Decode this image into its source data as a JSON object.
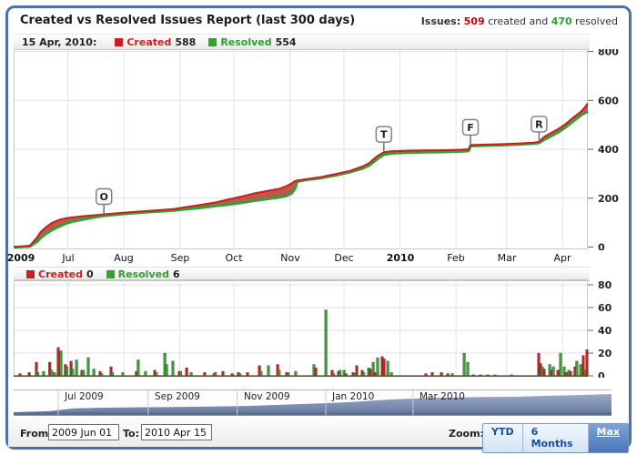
{
  "header": {
    "title": "Created vs Resolved Issues Report (last 300 days)",
    "issues_label": "Issues:",
    "created_count": "509",
    "created_join": " created and ",
    "resolved_count": "470",
    "resolved_tail": " resolved"
  },
  "colors": {
    "created_line": "#c9201d",
    "created_fill": "#ba4f45",
    "resolved_line": "#36a035",
    "grid": "#e2e2e2",
    "axis_text": "#222222",
    "nav_fill_top": "#9aa9c6",
    "nav_fill_bottom": "#66779f",
    "nav_bottom_band": "#5c6d94",
    "accent_blue": "#4a72a8"
  },
  "chart_data": [
    {
      "type": "area",
      "title": "Created vs Resolved cumulative",
      "legend": {
        "date": "15 Apr, 2010:",
        "created_label": "Created",
        "created_value": "588",
        "resolved_label": "Resolved",
        "resolved_value": "554"
      },
      "legend_position": "top",
      "x_range_days": 318,
      "ylim": [
        0,
        800
      ],
      "y_ticks": [
        0,
        200,
        400,
        600,
        800
      ],
      "y_axis_side": "right",
      "grid": true,
      "month_gridline_days": [
        30,
        61,
        92,
        122,
        153,
        183,
        214,
        245,
        273,
        304
      ],
      "x_labels": [
        {
          "label": "2009",
          "day": 4,
          "bold": true
        },
        {
          "label": "Jul",
          "day": 30,
          "bold": false
        },
        {
          "label": "Aug",
          "day": 61,
          "bold": false
        },
        {
          "label": "Sep",
          "day": 92,
          "bold": false
        },
        {
          "label": "Oct",
          "day": 122,
          "bold": false
        },
        {
          "label": "Nov",
          "day": 153,
          "bold": false
        },
        {
          "label": "Dec",
          "day": 183,
          "bold": false
        },
        {
          "label": "2010",
          "day": 214,
          "bold": true
        },
        {
          "label": "Feb",
          "day": 245,
          "bold": false
        },
        {
          "label": "Mar",
          "day": 273,
          "bold": false
        },
        {
          "label": "Apr",
          "day": 304,
          "bold": false
        }
      ],
      "flags": [
        {
          "label": "O",
          "day": 50,
          "value": 134
        },
        {
          "label": "T",
          "day": 205,
          "value": 388
        },
        {
          "label": "F",
          "day": 253,
          "value": 417
        },
        {
          "label": "R",
          "day": 291,
          "value": 430
        }
      ],
      "series_points_day_created_resolved": [
        [
          0,
          0,
          0
        ],
        [
          4,
          2,
          1
        ],
        [
          9,
          6,
          3
        ],
        [
          13,
          40,
          22
        ],
        [
          15,
          62,
          38
        ],
        [
          18,
          82,
          55
        ],
        [
          21,
          98,
          68
        ],
        [
          24,
          108,
          80
        ],
        [
          27,
          115,
          90
        ],
        [
          30,
          119,
          99
        ],
        [
          33,
          122,
          105
        ],
        [
          38,
          126,
          112
        ],
        [
          44,
          130,
          121
        ],
        [
          50,
          134,
          128
        ],
        [
          57,
          138,
          133
        ],
        [
          65,
          143,
          138
        ],
        [
          73,
          147,
          142
        ],
        [
          81,
          151,
          146
        ],
        [
          89,
          156,
          150
        ],
        [
          96,
          164,
          155
        ],
        [
          104,
          173,
          161
        ],
        [
          112,
          183,
          168
        ],
        [
          118,
          193,
          173
        ],
        [
          126,
          206,
          181
        ],
        [
          133,
          219,
          189
        ],
        [
          140,
          229,
          196
        ],
        [
          147,
          238,
          203
        ],
        [
          151,
          249,
          209
        ],
        [
          154,
          261,
          220
        ],
        [
          156,
          270,
          240
        ],
        [
          157,
          272,
          268
        ],
        [
          162,
          278,
          275
        ],
        [
          170,
          286,
          282
        ],
        [
          178,
          298,
          293
        ],
        [
          186,
          311,
          306
        ],
        [
          193,
          329,
          321
        ],
        [
          197,
          344,
          334
        ],
        [
          201,
          370,
          358
        ],
        [
          205,
          388,
          378
        ],
        [
          209,
          392,
          383
        ],
        [
          218,
          394,
          386
        ],
        [
          228,
          395,
          388
        ],
        [
          238,
          396,
          389
        ],
        [
          248,
          398,
          391
        ],
        [
          252,
          400,
          393
        ],
        [
          253,
          417,
          413
        ],
        [
          261,
          419,
          415
        ],
        [
          271,
          421,
          417
        ],
        [
          281,
          424,
          420
        ],
        [
          288,
          427,
          423
        ],
        [
          291,
          430,
          426
        ],
        [
          294,
          452,
          440
        ],
        [
          298,
          468,
          455
        ],
        [
          302,
          485,
          471
        ],
        [
          306,
          505,
          492
        ],
        [
          309,
          524,
          509
        ],
        [
          312,
          541,
          526
        ],
        [
          314,
          553,
          538
        ],
        [
          316,
          568,
          547
        ],
        [
          318,
          588,
          554
        ]
      ]
    },
    {
      "type": "bar",
      "title": "Created vs Resolved daily",
      "legend": {
        "created_label": "Created",
        "created_value": "0",
        "resolved_label": "Resolved",
        "resolved_value": "6"
      },
      "x_range_days": 318,
      "ylim": [
        0,
        80
      ],
      "y_ticks": [
        0,
        20,
        40,
        60,
        80
      ],
      "y_axis_side": "right",
      "grid": true,
      "month_gridline_days": [
        30,
        61,
        92,
        122,
        153,
        183,
        214,
        245,
        273,
        304
      ],
      "bars_day_series_value": [
        [
          3.5,
          "c",
          2
        ],
        [
          8.6,
          "c",
          3
        ],
        [
          12.6,
          "c",
          12
        ],
        [
          13.4,
          "r",
          3
        ],
        [
          16.6,
          "r",
          4
        ],
        [
          20,
          "c",
          12
        ],
        [
          21,
          "r",
          5
        ],
        [
          22.7,
          "r",
          3
        ],
        [
          24.7,
          "c",
          25
        ],
        [
          26.2,
          "r",
          22
        ],
        [
          28.7,
          "c",
          10
        ],
        [
          29.5,
          "r",
          8
        ],
        [
          31.8,
          "c",
          13
        ],
        [
          32.6,
          "r",
          6
        ],
        [
          34.8,
          "r",
          14
        ],
        [
          37.8,
          "c",
          5
        ],
        [
          38.6,
          "r",
          5
        ],
        [
          41.3,
          "r",
          16
        ],
        [
          44.4,
          "r",
          6
        ],
        [
          47.9,
          "c",
          4
        ],
        [
          48.7,
          "r",
          2
        ],
        [
          53.9,
          "c",
          8
        ],
        [
          54.7,
          "r",
          3
        ],
        [
          60.5,
          "r",
          3
        ],
        [
          68,
          "c",
          4
        ],
        [
          69,
          "r",
          14
        ],
        [
          73,
          "r",
          4
        ],
        [
          78.1,
          "c",
          5
        ],
        [
          79,
          "r",
          3
        ],
        [
          83.7,
          "r",
          20
        ],
        [
          84.7,
          "r",
          10
        ],
        [
          88.2,
          "r",
          13
        ],
        [
          91.7,
          "c",
          4
        ],
        [
          92.5,
          "r",
          4
        ],
        [
          95.8,
          "c",
          7
        ],
        [
          98.3,
          "r",
          3
        ],
        [
          105.8,
          "c",
          3
        ],
        [
          110.9,
          "c",
          2
        ],
        [
          111.7,
          "r",
          3
        ],
        [
          115.9,
          "c",
          4
        ],
        [
          121,
          "c",
          2
        ],
        [
          124.5,
          "c",
          3
        ],
        [
          125.3,
          "r",
          2
        ],
        [
          129.5,
          "c",
          3
        ],
        [
          136.1,
          "c",
          9
        ],
        [
          137,
          "r",
          4
        ],
        [
          141.1,
          "r",
          9
        ],
        [
          146.2,
          "c",
          10
        ],
        [
          147,
          "r",
          5
        ],
        [
          151.2,
          "c",
          3
        ],
        [
          152,
          "r",
          3
        ],
        [
          156.2,
          "r",
          4
        ],
        [
          166.3,
          "r",
          10
        ],
        [
          167.3,
          "c",
          7
        ],
        [
          172.9,
          "r",
          58
        ],
        [
          176.4,
          "c",
          5
        ],
        [
          177.2,
          "r",
          2
        ],
        [
          179.9,
          "c",
          4
        ],
        [
          180.7,
          "r",
          5
        ],
        [
          183,
          "r",
          5
        ],
        [
          184,
          "c",
          2
        ],
        [
          188,
          "c",
          3
        ],
        [
          188.8,
          "r",
          2
        ],
        [
          190,
          "c",
          9
        ],
        [
          193,
          "c",
          5
        ],
        [
          193.8,
          "r",
          3
        ],
        [
          196.6,
          "r",
          7
        ],
        [
          197.4,
          "c",
          6
        ],
        [
          199.1,
          "r",
          12
        ],
        [
          199.9,
          "c",
          3
        ],
        [
          201.6,
          "r",
          16
        ],
        [
          204.1,
          "c",
          17
        ],
        [
          205.1,
          "c",
          15
        ],
        [
          207.2,
          "r",
          13
        ],
        [
          209.2,
          "r",
          3
        ],
        [
          228.3,
          "c",
          2
        ],
        [
          231.8,
          "c",
          3
        ],
        [
          236.9,
          "c",
          3
        ],
        [
          240.4,
          "c",
          2
        ],
        [
          242.9,
          "r",
          2
        ],
        [
          249.5,
          "r",
          20
        ],
        [
          251.5,
          "r",
          12
        ],
        [
          254.5,
          "c",
          1
        ],
        [
          258.6,
          "r",
          1
        ],
        [
          262.6,
          "r",
          1
        ],
        [
          266.6,
          "r",
          1
        ],
        [
          275.7,
          "r",
          1
        ],
        [
          290.8,
          "c",
          20
        ],
        [
          291.8,
          "c",
          11
        ],
        [
          292.8,
          "r",
          8
        ],
        [
          293.8,
          "c",
          6
        ],
        [
          296.9,
          "r",
          10
        ],
        [
          297.9,
          "c",
          5
        ],
        [
          298.9,
          "r",
          8
        ],
        [
          301.4,
          "c",
          5
        ],
        [
          302.9,
          "r",
          20
        ],
        [
          304.9,
          "r",
          8
        ],
        [
          305.9,
          "c",
          3
        ],
        [
          307.4,
          "r",
          5
        ],
        [
          308.4,
          "c",
          4
        ],
        [
          310.9,
          "c",
          8
        ],
        [
          311.9,
          "r",
          13
        ],
        [
          314,
          "r",
          10
        ],
        [
          315.5,
          "c",
          18
        ],
        [
          316.5,
          "r",
          5
        ],
        [
          317.5,
          "c",
          23
        ]
      ]
    }
  ],
  "navigator": {
    "sections": [
      {
        "label": "Jul 2009",
        "sep_t": 0.0746
      },
      {
        "label": "Sep 2009",
        "sep_t": 0.225
      },
      {
        "label": "Nov 2009",
        "sep_t": 0.374
      },
      {
        "label": "Jan 2010",
        "sep_t": 0.522
      },
      {
        "label": "Mar 2010",
        "sep_t": 0.668
      }
    ],
    "silhouette_points_t_h": [
      [
        0,
        0.07
      ],
      [
        0.03,
        0.1
      ],
      [
        0.06,
        0.13
      ],
      [
        0.1,
        0.26
      ],
      [
        0.14,
        0.3
      ],
      [
        0.2,
        0.32
      ],
      [
        0.27,
        0.34
      ],
      [
        0.33,
        0.36
      ],
      [
        0.39,
        0.39
      ],
      [
        0.44,
        0.44
      ],
      [
        0.47,
        0.48
      ],
      [
        0.52,
        0.53
      ],
      [
        0.56,
        0.58
      ],
      [
        0.6,
        0.66
      ],
      [
        0.63,
        0.72
      ],
      [
        0.66,
        0.76
      ],
      [
        0.7,
        0.8
      ],
      [
        0.74,
        0.83
      ],
      [
        0.79,
        0.85
      ],
      [
        0.84,
        0.86
      ],
      [
        0.88,
        0.9
      ],
      [
        0.92,
        0.93
      ],
      [
        0.96,
        0.96
      ],
      [
        1,
        1
      ]
    ]
  },
  "footer": {
    "from_label": "From:",
    "from_value": "2009 Jun 01",
    "to_label": "To:",
    "to_value": "2010 Apr 15",
    "zoom_label": "Zoom:",
    "buttons": [
      {
        "label": "YTD",
        "active": false
      },
      {
        "label": "6 Months",
        "active": false
      },
      {
        "label": "Max",
        "active": true
      }
    ]
  }
}
